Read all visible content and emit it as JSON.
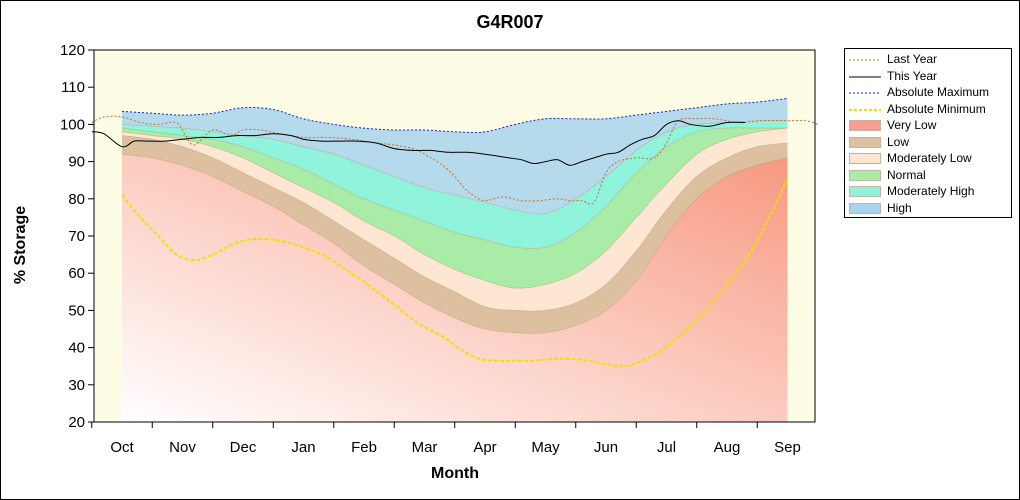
{
  "chart_data": {
    "type": "area",
    "title": "G4R007",
    "xlabel": "Month",
    "ylabel": "% Storage",
    "ylim": [
      20,
      120
    ],
    "yticks": [
      "120",
      "110",
      "100",
      "90",
      "80",
      "70",
      "60",
      "50",
      "40",
      "30",
      "20"
    ],
    "months": [
      "Oct",
      "Nov",
      "Dec",
      "Jan",
      "Feb",
      "Mar",
      "Apr",
      "May",
      "Jun",
      "Jul",
      "Aug",
      "Sep"
    ],
    "band_x": [
      0,
      0.5,
      1,
      1.5,
      2,
      2.5,
      3,
      3.5,
      4,
      4.5,
      5,
      5.5,
      6,
      6.5,
      7,
      7.5,
      8,
      8.5,
      9,
      9.5,
      10,
      10.5,
      11
    ],
    "bands": {
      "very_low_top": [
        92,
        91,
        89,
        86,
        82,
        78,
        73,
        68,
        62,
        57,
        52,
        48,
        45,
        44,
        44,
        46,
        50,
        58,
        70,
        80,
        86,
        89,
        91
      ],
      "low_top": [
        97,
        96,
        94,
        91,
        87,
        83,
        79,
        74,
        69,
        64,
        59,
        55,
        51,
        50,
        50,
        52,
        57,
        66,
        77,
        86,
        91,
        94,
        95
      ],
      "moderately_low_top": [
        98,
        97,
        96,
        94,
        91,
        87,
        83,
        79,
        74,
        70,
        65,
        61,
        58,
        56,
        57,
        60,
        66,
        75,
        84,
        92,
        96,
        98,
        99
      ],
      "normal_top": [
        99,
        98,
        97,
        96,
        94,
        91,
        88,
        84,
        80,
        77,
        74,
        71,
        69,
        67,
        67,
        71,
        78,
        87,
        94,
        98,
        99,
        99,
        99
      ],
      "moderately_high_top": [
        100,
        99.5,
        99,
        98,
        97,
        96,
        94,
        92,
        89,
        86,
        83,
        81,
        79,
        77,
        76,
        80,
        86,
        93,
        98,
        100,
        100.5,
        101,
        101
      ],
      "high_top": [
        103.5,
        103,
        102.5,
        103,
        104.5,
        104,
        101.5,
        100,
        99,
        98.5,
        98.5,
        98,
        98,
        100,
        101.5,
        101.5,
        101.5,
        102.5,
        103.5,
        104.5,
        105.5,
        106,
        107
      ]
    },
    "series": [
      {
        "name": "Last Year",
        "x": [
          -0.5,
          -0.3,
          0,
          0.3,
          0.6,
          0.9,
          1.05,
          1.2,
          1.5,
          1.8,
          2.0,
          2.3,
          2.6,
          3.0,
          3.4,
          3.8,
          4.2,
          4.5,
          4.8,
          5.0,
          5.3,
          5.5,
          5.65,
          5.8,
          6.0,
          6.3,
          6.6,
          6.9,
          7.2,
          7.4,
          7.6,
          7.8,
          8.0,
          8.2,
          8.5,
          8.8,
          9.0,
          9.2,
          9.5,
          9.8,
          10.2,
          10.6,
          11.0,
          11.3,
          11.5
        ],
        "y": [
          100.5,
          102,
          102,
          100.5,
          100,
          100.5,
          97,
          94.5,
          98.5,
          97,
          98.5,
          98.5,
          97.5,
          96.5,
          96.5,
          96,
          95,
          94.5,
          93.5,
          92,
          89,
          86,
          83,
          81,
          79.5,
          80.5,
          79.5,
          79.5,
          80,
          79.5,
          79.5,
          79,
          87,
          90,
          91,
          91,
          95,
          101,
          101.5,
          101.5,
          100.5,
          101,
          101,
          101,
          100
        ]
      },
      {
        "name": "This Year",
        "x": [
          -0.5,
          -0.3,
          0,
          0.2,
          0.4,
          0.7,
          1.0,
          1.3,
          1.6,
          1.9,
          2.2,
          2.5,
          2.8,
          3.0,
          3.3,
          3.6,
          3.9,
          4.2,
          4.5,
          4.8,
          5.1,
          5.4,
          5.7,
          6.0,
          6.2,
          6.4,
          6.6,
          6.8,
          7.0,
          7.2,
          7.4,
          7.6,
          7.8,
          8.0,
          8.2,
          8.4,
          8.6,
          8.8,
          9.0,
          9.2,
          9.4,
          9.7,
          10.0,
          10.3
        ],
        "y": [
          98,
          97.5,
          94,
          95.5,
          95.5,
          95.5,
          96,
          96.5,
          96.5,
          97,
          97,
          97.5,
          97,
          96,
          95.5,
          95.5,
          95.5,
          95,
          93.5,
          93,
          93,
          92.5,
          92.5,
          92,
          91.5,
          91,
          90.5,
          89.5,
          90,
          90.5,
          89,
          90,
          91,
          92,
          92.5,
          94.5,
          96,
          97,
          100,
          101,
          100,
          99.5,
          100.5,
          100.5
        ]
      },
      {
        "name": "Absolute Maximum",
        "x": [
          0,
          0.5,
          1,
          1.5,
          2,
          2.5,
          3,
          3.5,
          4,
          4.5,
          5,
          5.5,
          6,
          6.5,
          7,
          7.5,
          8,
          8.5,
          9,
          9.5,
          10,
          10.5,
          11
        ],
        "y": [
          103.5,
          103,
          102.5,
          103,
          104.5,
          104,
          101.5,
          100,
          99,
          98.5,
          98.5,
          98,
          98,
          100,
          101.5,
          101.5,
          101.5,
          102.5,
          103.5,
          104.5,
          105.5,
          106,
          107
        ]
      },
      {
        "name": "Absolute Minimum",
        "x": [
          0,
          0.3,
          0.6,
          0.9,
          1.2,
          1.5,
          1.8,
          2.1,
          2.5,
          2.9,
          3.3,
          3.7,
          4.1,
          4.5,
          4.9,
          5.3,
          5.6,
          5.9,
          6.2,
          6.5,
          6.8,
          7.1,
          7.4,
          7.7,
          8.0,
          8.3,
          8.6,
          8.9,
          9.2,
          9.5,
          9.8,
          10.1,
          10.4,
          10.7,
          11.0
        ],
        "y": [
          81,
          75,
          70,
          65,
          63.5,
          65,
          67.5,
          69,
          69,
          67.5,
          65,
          61,
          56.5,
          51.5,
          46.5,
          43,
          39.5,
          37,
          36.5,
          36.5,
          36.5,
          37,
          37,
          36.5,
          35.5,
          35,
          36.5,
          39,
          43,
          47.5,
          53,
          59,
          66,
          75,
          85.5
        ]
      }
    ],
    "legend_position": "right",
    "legend": [
      {
        "label": "Last Year",
        "kind": "line",
        "color": "#c0702a",
        "dash": "2,2"
      },
      {
        "label": "This Year",
        "kind": "line",
        "color": "#000000",
        "dash": ""
      },
      {
        "label": "Absolute Maximum",
        "kind": "line",
        "color": "#1020d0",
        "dash": "2,2"
      },
      {
        "label": "Absolute Minimum",
        "kind": "line",
        "color": "#f0e000",
        "dash": "3,2"
      },
      {
        "label": "Very Low",
        "kind": "fill",
        "color": "#f8a090"
      },
      {
        "label": "Low",
        "kind": "fill",
        "color": "#dcc0a0"
      },
      {
        "label": "Moderately Low",
        "kind": "fill",
        "color": "#fde6d2"
      },
      {
        "label": "Normal",
        "kind": "fill",
        "color": "#a8eca8"
      },
      {
        "label": "Moderately High",
        "kind": "fill",
        "color": "#90f4dc"
      },
      {
        "label": "High",
        "kind": "fill",
        "color": "#a8d4ec"
      }
    ],
    "colors": {
      "plot_background": "#fdfde6",
      "very_low": "#f8a090",
      "low": "#dcc0a0",
      "moderately_low": "#fde6d2",
      "normal": "#a8eca8",
      "moderately_high": "#90f4dc",
      "high": "#a8d4ec"
    },
    "grid": false
  }
}
